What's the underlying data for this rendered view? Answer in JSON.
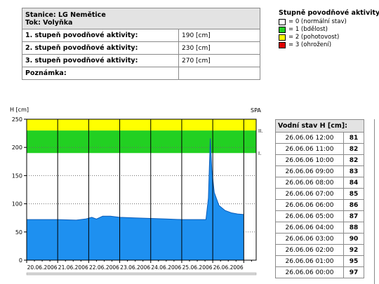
{
  "station": {
    "station_line": "Stanice: LG Nemětice",
    "river_line": "Tok: Volyňka",
    "rows": [
      {
        "label": "1. stupeň povodňové aktivity:",
        "value": "190 [cm]"
      },
      {
        "label": "2. stupeň povodňové aktivity:",
        "value": "230 [cm]"
      },
      {
        "label": "3. stupeň povodňové aktivity:",
        "value": "270 [cm]"
      }
    ],
    "note_label": "Poznámka:",
    "note_value": ""
  },
  "legend": {
    "title": "Stupně povodňové aktivity:",
    "items": [
      {
        "color": "#ffffff",
        "label": "= 0 (normální stav)"
      },
      {
        "color": "#22d022",
        "label": "= 1 (bdělost)"
      },
      {
        "color": "#ffff00",
        "label": "= 2 (pohotovost)"
      },
      {
        "color": "#e00000",
        "label": "= 3 (ohrožení)"
      }
    ]
  },
  "chart_data": {
    "type": "area",
    "ylabel": "H [cm]",
    "corner_label": "SPA",
    "ylim": [
      0,
      250
    ],
    "yticks": [
      0,
      50,
      100,
      150,
      200,
      250
    ],
    "xticks": [
      "20.06.2006",
      "21.06.2006",
      "22.06.2006",
      "23.06.2006",
      "24.06.2006",
      "25.06.2006",
      "26.06.2006"
    ],
    "xlim_days": [
      0,
      7.4
    ],
    "bands": [
      {
        "from": 190,
        "to": 230,
        "color": "#22d022"
      },
      {
        "from": 230,
        "to": 250,
        "color": "#ffff00"
      }
    ],
    "band_labels": [
      {
        "label": "I.",
        "value": 190
      },
      {
        "label": "II.",
        "value": 230
      }
    ],
    "series_color": "#1e90f0",
    "series": [
      {
        "x_days": 0.0,
        "value": 72
      },
      {
        "x_days": 1.0,
        "value": 72
      },
      {
        "x_days": 1.6,
        "value": 71
      },
      {
        "x_days": 1.9,
        "value": 73
      },
      {
        "x_days": 2.1,
        "value": 76
      },
      {
        "x_days": 2.25,
        "value": 73
      },
      {
        "x_days": 2.45,
        "value": 78
      },
      {
        "x_days": 2.7,
        "value": 78
      },
      {
        "x_days": 3.0,
        "value": 76
      },
      {
        "x_days": 3.5,
        "value": 75
      },
      {
        "x_days": 4.0,
        "value": 74
      },
      {
        "x_days": 4.5,
        "value": 73
      },
      {
        "x_days": 5.0,
        "value": 72
      },
      {
        "x_days": 5.5,
        "value": 72
      },
      {
        "x_days": 5.78,
        "value": 72
      },
      {
        "x_days": 5.86,
        "value": 110
      },
      {
        "x_days": 5.92,
        "value": 216
      },
      {
        "x_days": 5.97,
        "value": 160
      },
      {
        "x_days": 6.05,
        "value": 120
      },
      {
        "x_days": 6.2,
        "value": 97
      },
      {
        "x_days": 6.4,
        "value": 88
      },
      {
        "x_days": 6.6,
        "value": 84
      },
      {
        "x_days": 6.8,
        "value": 82
      },
      {
        "x_days": 7.0,
        "value": 81
      }
    ]
  },
  "levels": {
    "header": "Vodní stav H [cm]:",
    "rows": [
      {
        "time": "26.06.06 12:00",
        "value": "81"
      },
      {
        "time": "26.06.06 11:00",
        "value": "82"
      },
      {
        "time": "26.06.06 10:00",
        "value": "82"
      },
      {
        "time": "26.06.06 09:00",
        "value": "83"
      },
      {
        "time": "26.06.06 08:00",
        "value": "84"
      },
      {
        "time": "26.06.06 07:00",
        "value": "85"
      },
      {
        "time": "26.06.06 06:00",
        "value": "86"
      },
      {
        "time": "26.06.06 05:00",
        "value": "87"
      },
      {
        "time": "26.06.06 04:00",
        "value": "88"
      },
      {
        "time": "26.06.06 03:00",
        "value": "90"
      },
      {
        "time": "26.06.06 02:00",
        "value": "92"
      },
      {
        "time": "26.06.06 01:00",
        "value": "95"
      },
      {
        "time": "26.06.06 00:00",
        "value": "97"
      }
    ]
  }
}
